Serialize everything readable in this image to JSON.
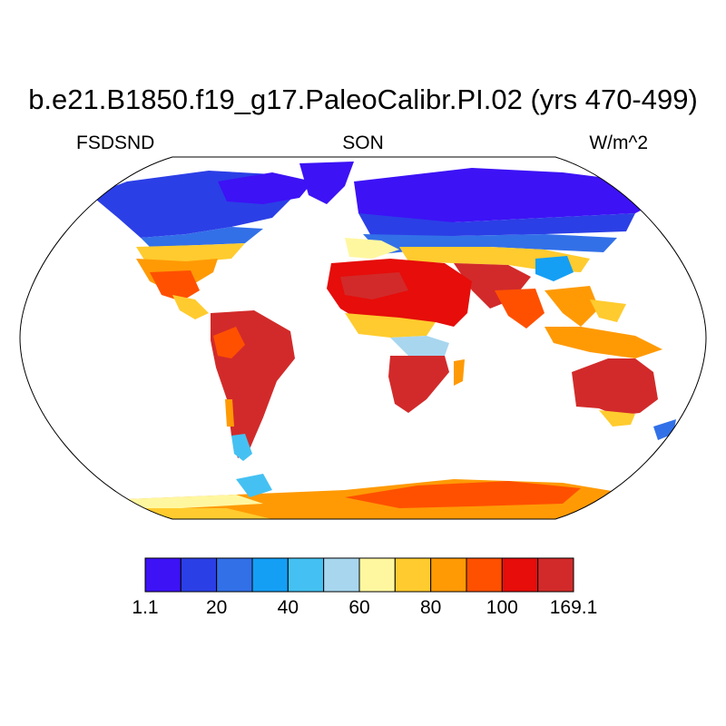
{
  "title": "b.e21.B1850.f19_g17.PaleoCalibr.PI.02 (yrs 470-499)",
  "subtitle_left": "FSDSND",
  "subtitle_center": "SON",
  "subtitle_right": "W/m^2",
  "colorbar": {
    "colors": [
      "#3d12f5",
      "#2b3fe6",
      "#3270e8",
      "#149ff5",
      "#44c1f2",
      "#a8d6ef",
      "#fff7a0",
      "#ffcb2e",
      "#ff9a05",
      "#ff5000",
      "#e60d0a",
      "#d22a2a"
    ],
    "tick_labels": [
      "1.1",
      "20",
      "40",
      "60",
      "80",
      "100",
      "169.1"
    ]
  },
  "colors": {
    "ocean": "#ffffff",
    "land_outline": "#000000"
  }
}
